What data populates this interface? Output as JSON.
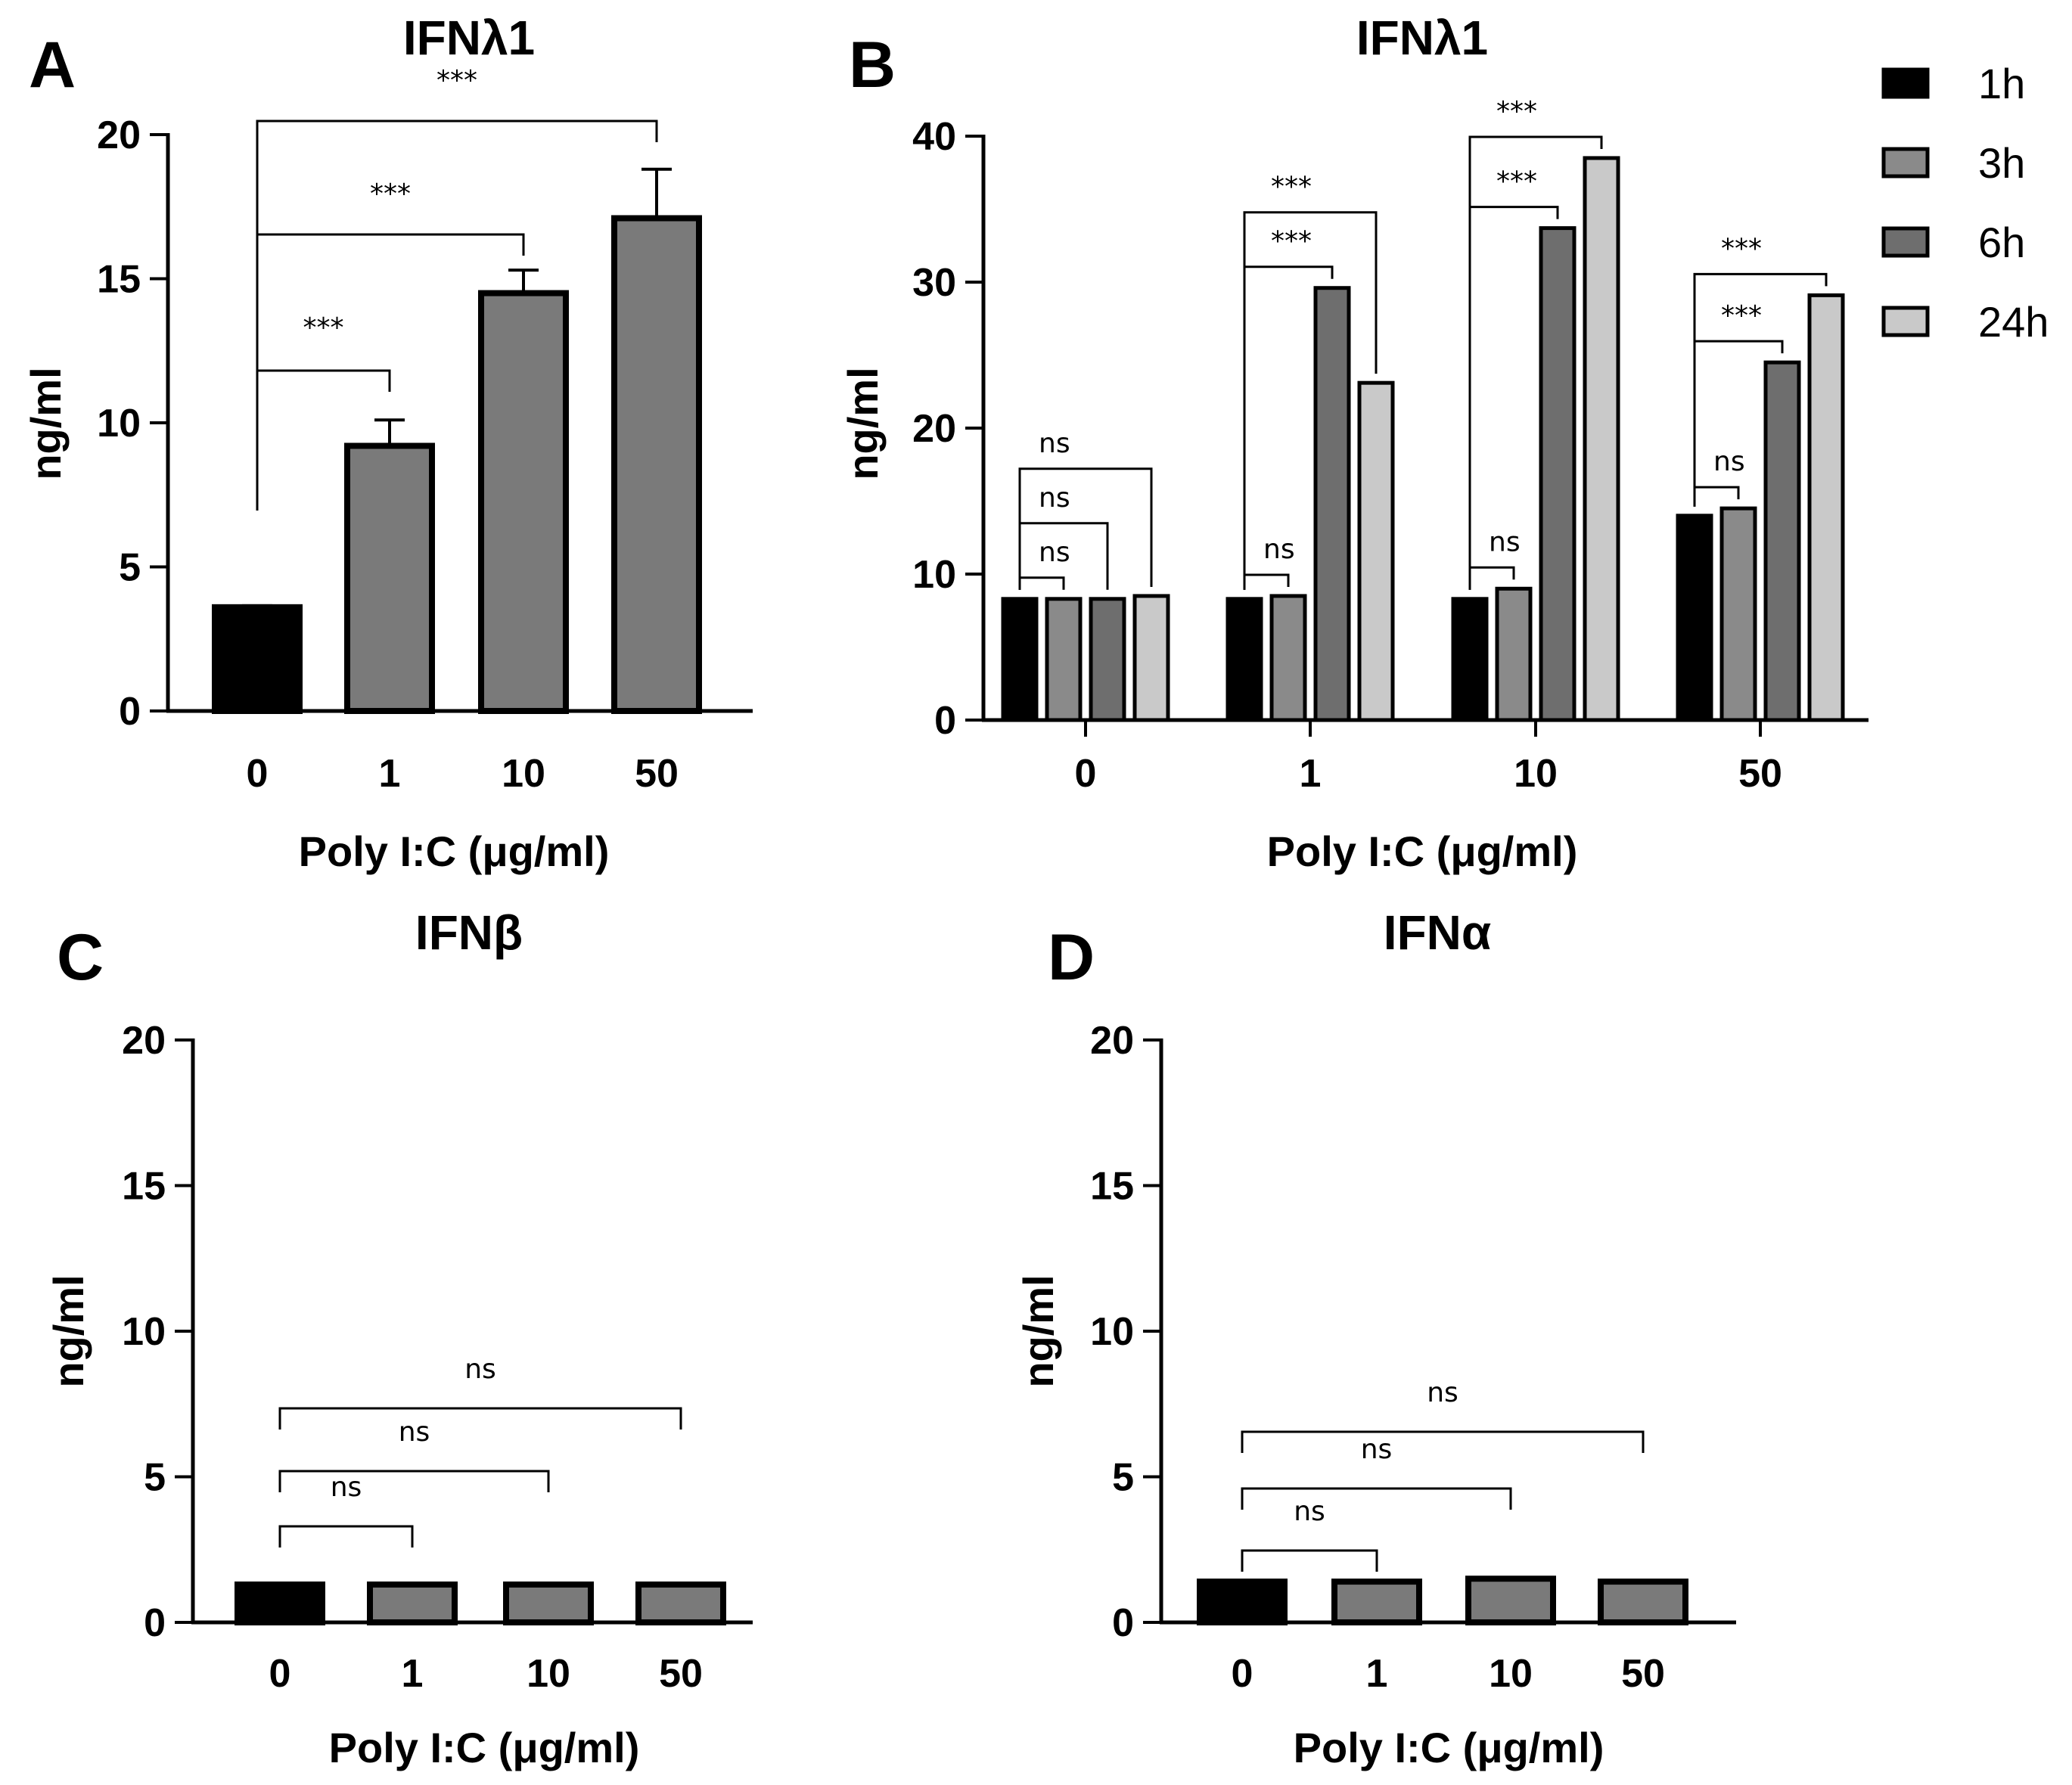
{
  "chart_data": [
    {
      "panel": "A",
      "type": "bar",
      "title": "IFNλ1",
      "xlabel": "Poly I:C (μg/ml)",
      "ylabel": "ng/ml",
      "ylim": [
        0,
        20
      ],
      "yticks": [
        "0",
        "5",
        "10",
        "15",
        "20"
      ],
      "categories": [
        "0",
        "1",
        "10",
        "50"
      ],
      "values": [
        3.6,
        9.2,
        14.5,
        17.1
      ],
      "errors": [
        0.05,
        0.9,
        0.8,
        1.7
      ],
      "colors": [
        "#000000",
        "#7a7a7a",
        "#7a7a7a",
        "#7a7a7a"
      ],
      "significance": [
        {
          "from": 0,
          "to": 1,
          "label": "***"
        },
        {
          "from": 0,
          "to": 2,
          "label": "***"
        },
        {
          "from": 0,
          "to": 3,
          "label": "***"
        }
      ]
    },
    {
      "panel": "B",
      "type": "bar",
      "title": "IFNλ1",
      "xlabel": "Poly I:C (μg/ml)",
      "ylabel": "ng/ml",
      "ylim": [
        0,
        40
      ],
      "yticks": [
        "0",
        "10",
        "20",
        "30",
        "40"
      ],
      "categories": [
        "0",
        "1",
        "10",
        "50"
      ],
      "series": [
        {
          "name": "1h",
          "color": "#000000",
          "values": [
            8.3,
            8.3,
            8.3,
            14.0
          ]
        },
        {
          "name": "3h",
          "color": "#8a8a8a",
          "values": [
            8.3,
            8.5,
            9.0,
            14.5
          ]
        },
        {
          "name": "6h",
          "color": "#6e6e6e",
          "values": [
            8.3,
            29.6,
            33.7,
            24.5
          ]
        },
        {
          "name": "24h",
          "color": "#c9c9c9",
          "values": [
            8.5,
            23.1,
            38.5,
            29.1
          ]
        }
      ],
      "significance": [
        {
          "category": 0,
          "from": 0,
          "to": 1,
          "label": "ns"
        },
        {
          "category": 0,
          "from": 0,
          "to": 2,
          "label": "ns"
        },
        {
          "category": 0,
          "from": 0,
          "to": 3,
          "label": "ns"
        },
        {
          "category": 1,
          "from": 0,
          "to": 1,
          "label": "ns"
        },
        {
          "category": 1,
          "from": 0,
          "to": 2,
          "label": "***"
        },
        {
          "category": 1,
          "from": 0,
          "to": 3,
          "label": "***"
        },
        {
          "category": 2,
          "from": 0,
          "to": 1,
          "label": "ns"
        },
        {
          "category": 2,
          "from": 0,
          "to": 2,
          "label": "***"
        },
        {
          "category": 2,
          "from": 0,
          "to": 3,
          "label": "***"
        },
        {
          "category": 3,
          "from": 0,
          "to": 1,
          "label": "ns"
        },
        {
          "category": 3,
          "from": 0,
          "to": 2,
          "label": "***"
        },
        {
          "category": 3,
          "from": 0,
          "to": 3,
          "label": "***"
        }
      ],
      "legend": {
        "position": "top-right",
        "entries": [
          "1h",
          "3h",
          "6h",
          "24h"
        ]
      }
    },
    {
      "panel": "C",
      "type": "bar",
      "title": "IFNβ",
      "xlabel": "Poly I:C (μg/ml)",
      "ylabel": "ng/ml",
      "ylim": [
        0,
        20
      ],
      "yticks": [
        "0",
        "5",
        "10",
        "15",
        "20"
      ],
      "categories": [
        "0",
        "1",
        "10",
        "50"
      ],
      "values": [
        1.3,
        1.3,
        1.3,
        1.3
      ],
      "colors": [
        "#000000",
        "#7a7a7a",
        "#7a7a7a",
        "#7a7a7a"
      ],
      "significance": [
        {
          "from": 0,
          "to": 1,
          "label": "ns"
        },
        {
          "from": 0,
          "to": 2,
          "label": "ns"
        },
        {
          "from": 0,
          "to": 3,
          "label": "ns"
        }
      ]
    },
    {
      "panel": "D",
      "type": "bar",
      "title": "IFNα",
      "xlabel": "Poly I:C (μg/ml)",
      "ylabel": "ng/ml",
      "ylim": [
        0,
        20
      ],
      "yticks": [
        "0",
        "5",
        "10",
        "15",
        "20"
      ],
      "categories": [
        "0",
        "1",
        "10",
        "50"
      ],
      "values": [
        1.4,
        1.4,
        1.5,
        1.4
      ],
      "colors": [
        "#000000",
        "#7a7a7a",
        "#7a7a7a",
        "#7a7a7a"
      ],
      "significance": [
        {
          "from": 0,
          "to": 1,
          "label": "ns"
        },
        {
          "from": 0,
          "to": 2,
          "label": "ns"
        },
        {
          "from": 0,
          "to": 3,
          "label": "ns"
        }
      ]
    }
  ]
}
